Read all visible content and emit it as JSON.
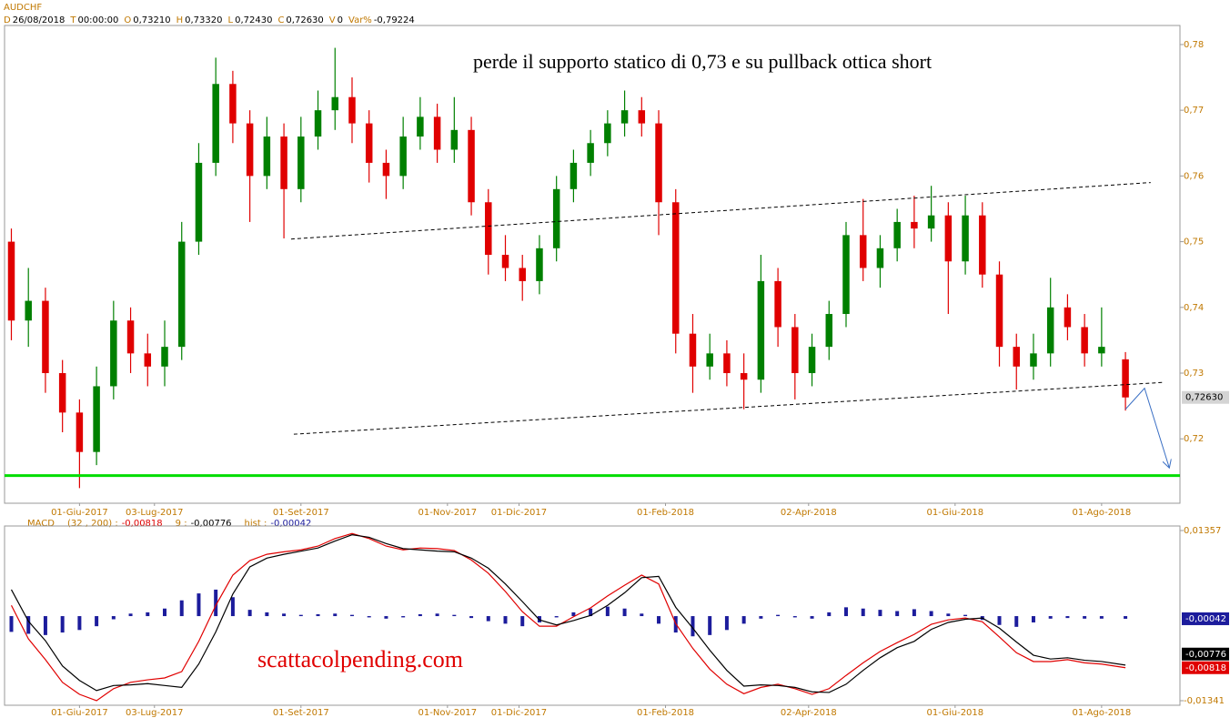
{
  "header": {
    "symbol": "AUDCHF",
    "info": [
      {
        "key": "D",
        "value": "26/08/2018"
      },
      {
        "key": "T",
        "value": "00:00:00"
      },
      {
        "key": "O",
        "value": "0,73210"
      },
      {
        "key": "H",
        "value": "0,73320"
      },
      {
        "key": "L",
        "value": "0,72430"
      },
      {
        "key": "C",
        "value": "0,72630"
      },
      {
        "key": "V",
        "value": "0"
      },
      {
        "key": "Var%",
        "value": "-0,79224"
      }
    ]
  },
  "chart_data": [
    {
      "type": "candlestick",
      "up_color": "#008000",
      "down_color": "#e00000",
      "xlim": [
        0,
        345
      ],
      "ylim": [
        0.7102,
        0.7829
      ],
      "xticks": [
        {
          "value": 22,
          "label": "01-Giu-2017"
        },
        {
          "value": 44,
          "label": "03-Lug-2017"
        },
        {
          "value": 87,
          "label": "01-Set-2017"
        },
        {
          "value": 130,
          "label": "01-Nov-2017"
        },
        {
          "value": 151,
          "label": "01-Dic-2017"
        },
        {
          "value": 194,
          "label": "01-Feb-2018"
        },
        {
          "value": 236,
          "label": "02-Apr-2018"
        },
        {
          "value": 279,
          "label": "01-Giu-2018"
        },
        {
          "value": 322,
          "label": "01-Ago-2018"
        }
      ],
      "yticks": [
        {
          "value": 0.78,
          "label": "0,78"
        },
        {
          "value": 0.77,
          "label": "0,77"
        },
        {
          "value": 0.76,
          "label": "0,76"
        },
        {
          "value": 0.75,
          "label": "0,75"
        },
        {
          "value": 0.74,
          "label": "0,74"
        },
        {
          "value": 0.73,
          "label": "0,73"
        },
        {
          "value": 0.72,
          "label": "0,72"
        }
      ],
      "x": [
        2,
        7,
        12,
        17,
        22,
        27,
        32,
        37,
        42,
        47,
        52,
        57,
        62,
        67,
        72,
        77,
        82,
        87,
        92,
        97,
        102,
        107,
        112,
        117,
        122,
        127,
        132,
        137,
        142,
        147,
        152,
        157,
        162,
        167,
        172,
        177,
        182,
        187,
        192,
        197,
        202,
        207,
        212,
        217,
        222,
        227,
        232,
        237,
        242,
        247,
        252,
        257,
        262,
        267,
        272,
        277,
        282,
        287,
        292,
        297,
        302,
        307,
        312,
        317,
        322,
        329
      ],
      "open": [
        0.75,
        0.738,
        0.741,
        0.73,
        0.724,
        0.718,
        0.728,
        0.738,
        0.733,
        0.731,
        0.734,
        0.75,
        0.762,
        0.774,
        0.768,
        0.76,
        0.766,
        0.758,
        0.766,
        0.77,
        0.772,
        0.768,
        0.762,
        0.76,
        0.766,
        0.769,
        0.764,
        0.767,
        0.756,
        0.748,
        0.746,
        0.744,
        0.749,
        0.758,
        0.762,
        0.765,
        0.768,
        0.77,
        0.768,
        0.756,
        0.736,
        0.731,
        0.733,
        0.73,
        0.729,
        0.744,
        0.737,
        0.73,
        0.734,
        0.739,
        0.751,
        0.746,
        0.749,
        0.753,
        0.752,
        0.754,
        0.747,
        0.754,
        0.745,
        0.734,
        0.731,
        0.733,
        0.74,
        0.737,
        0.733,
        0.7321
      ],
      "high": [
        0.752,
        0.746,
        0.743,
        0.732,
        0.726,
        0.731,
        0.741,
        0.74,
        0.736,
        0.738,
        0.753,
        0.765,
        0.778,
        0.776,
        0.77,
        0.769,
        0.768,
        0.769,
        0.773,
        0.7795,
        0.775,
        0.77,
        0.764,
        0.769,
        0.772,
        0.771,
        0.772,
        0.769,
        0.758,
        0.751,
        0.748,
        0.751,
        0.76,
        0.764,
        0.767,
        0.77,
        0.773,
        0.772,
        0.77,
        0.758,
        0.739,
        0.736,
        0.735,
        0.733,
        0.748,
        0.746,
        0.739,
        0.736,
        0.741,
        0.753,
        0.7565,
        0.751,
        0.755,
        0.757,
        0.7585,
        0.756,
        0.757,
        0.756,
        0.747,
        0.736,
        0.736,
        0.7445,
        0.742,
        0.739,
        0.74,
        0.7332
      ],
      "low": [
        0.735,
        0.734,
        0.727,
        0.721,
        0.7125,
        0.716,
        0.726,
        0.73,
        0.728,
        0.728,
        0.732,
        0.748,
        0.76,
        0.765,
        0.753,
        0.758,
        0.7505,
        0.756,
        0.764,
        0.767,
        0.765,
        0.759,
        0.7565,
        0.758,
        0.764,
        0.762,
        0.762,
        0.754,
        0.745,
        0.744,
        0.741,
        0.742,
        0.747,
        0.756,
        0.76,
        0.763,
        0.766,
        0.766,
        0.751,
        0.733,
        0.727,
        0.729,
        0.728,
        0.7245,
        0.727,
        0.734,
        0.726,
        0.728,
        0.732,
        0.737,
        0.744,
        0.743,
        0.747,
        0.749,
        0.75,
        0.739,
        0.745,
        0.743,
        0.731,
        0.7275,
        0.729,
        0.731,
        0.735,
        0.731,
        0.731,
        0.7243
      ],
      "close": [
        0.738,
        0.741,
        0.73,
        0.724,
        0.718,
        0.728,
        0.738,
        0.733,
        0.731,
        0.734,
        0.75,
        0.762,
        0.774,
        0.768,
        0.76,
        0.766,
        0.758,
        0.766,
        0.77,
        0.772,
        0.768,
        0.762,
        0.76,
        0.766,
        0.769,
        0.764,
        0.767,
        0.756,
        0.748,
        0.746,
        0.744,
        0.749,
        0.758,
        0.762,
        0.765,
        0.768,
        0.77,
        0.768,
        0.756,
        0.736,
        0.731,
        0.733,
        0.73,
        0.729,
        0.744,
        0.737,
        0.73,
        0.734,
        0.739,
        0.751,
        0.746,
        0.749,
        0.753,
        0.752,
        0.754,
        0.747,
        0.754,
        0.745,
        0.734,
        0.731,
        0.733,
        0.74,
        0.737,
        0.733,
        0.734,
        0.7263
      ],
      "close_label": "0,72630",
      "drawings": [
        {
          "kind": "dashed",
          "color": "#000000",
          "x": [
            84.1,
            336.4
          ],
          "y": [
            0.7504,
            0.759
          ]
        },
        {
          "kind": "dashed",
          "color": "#000000",
          "x": [
            84.9,
            340.5
          ],
          "y": [
            0.7207,
            0.7286
          ]
        },
        {
          "kind": "solid",
          "color": "#00dd00",
          "x": [
            0,
            345
          ],
          "y": [
            0.7144,
            0.7144
          ]
        },
        {
          "kind": "arrow",
          "color": "#3a6fc4",
          "x": [
            329,
            334.6,
            341.8
          ],
          "y": [
            0.7245,
            0.7277,
            0.7157
          ]
        }
      ],
      "annotations": [
        {
          "text": "perde il supporto statico di 0,73 e su pullback ottica short",
          "color": "#000000"
        }
      ]
    },
    {
      "type": "macd",
      "title": "MACD",
      "xlim": [
        0,
        345
      ],
      "ylim": [
        -0.01413,
        0.01429
      ],
      "yticks": [
        {
          "value": 0.01357,
          "label": "0,01357"
        },
        {
          "value": -0.01341,
          "label": "-0,01341"
        }
      ],
      "x": [
        2,
        7,
        12,
        17,
        22,
        27,
        32,
        37,
        42,
        47,
        52,
        57,
        62,
        67,
        72,
        77,
        82,
        87,
        92,
        97,
        102,
        107,
        112,
        117,
        122,
        127,
        132,
        137,
        142,
        147,
        152,
        157,
        162,
        167,
        172,
        177,
        182,
        187,
        192,
        197,
        202,
        207,
        212,
        217,
        222,
        227,
        232,
        237,
        242,
        247,
        252,
        257,
        262,
        267,
        272,
        277,
        282,
        287,
        292,
        297,
        302,
        307,
        312,
        317,
        322,
        329
      ],
      "series": [
        {
          "name": "(32 , 200) :",
          "kind": "line",
          "color": "#e00000",
          "value_label": "-0,00818",
          "values": [
            0.0017,
            -0.0036,
            -0.0069,
            -0.0105,
            -0.0124,
            -0.0134,
            -0.0115,
            -0.0105,
            -0.0101,
            -0.0098,
            -0.0088,
            -0.004,
            0.0017,
            0.0065,
            0.0088,
            0.0098,
            0.0102,
            0.0105,
            0.0111,
            0.0123,
            0.0131,
            0.0123,
            0.0111,
            0.0105,
            0.0108,
            0.0107,
            0.0104,
            0.0089,
            0.0068,
            0.0039,
            0.0007,
            -0.0016,
            -0.0016,
            -0.0001,
            0.0013,
            0.0032,
            0.0049,
            0.0065,
            0.0051,
            -0.0012,
            -0.0051,
            -0.0084,
            -0.0108,
            -0.0123,
            -0.0113,
            -0.0108,
            -0.0115,
            -0.0124,
            -0.0115,
            -0.0094,
            -0.0074,
            -0.0056,
            -0.0042,
            -0.0029,
            -0.0013,
            -0.0006,
            -0.0003,
            -0.0009,
            -0.0033,
            -0.0058,
            -0.0072,
            -0.0072,
            -0.0069,
            -0.0074,
            -0.0076,
            -0.00818
          ]
        },
        {
          "name": "9 :",
          "kind": "line",
          "color": "#000000",
          "value_label": "-0,00776",
          "values": [
            0.0042,
            -0.0008,
            -0.0039,
            -0.0079,
            -0.0102,
            -0.0118,
            -0.011,
            -0.0109,
            -0.0107,
            -0.011,
            -0.0113,
            -0.0076,
            -0.0025,
            0.0035,
            0.0078,
            0.0092,
            0.0098,
            0.0103,
            0.0108,
            0.0119,
            0.0129,
            0.0125,
            0.0115,
            0.0107,
            0.0105,
            0.0103,
            0.0102,
            0.0092,
            0.0076,
            0.0051,
            0.0023,
            -0.0006,
            -0.0014,
            -0.0007,
            0.0001,
            0.0017,
            0.0037,
            0.0061,
            0.0063,
            0.0014,
            -0.0019,
            -0.0054,
            -0.0086,
            -0.0111,
            -0.0109,
            -0.011,
            -0.0113,
            -0.012,
            -0.0121,
            -0.0108,
            -0.0086,
            -0.0066,
            -0.005,
            -0.004,
            -0.0021,
            -0.001,
            -0.0005,
            -0.0003,
            -0.0019,
            -0.0041,
            -0.0062,
            -0.0068,
            -0.0066,
            -0.007,
            -0.0072,
            -0.00776
          ]
        },
        {
          "name": "hist :",
          "kind": "hist",
          "color": "#1c1c9c",
          "value_label": "-0,00042",
          "values": [
            -0.0025,
            -0.0028,
            -0.003,
            -0.0026,
            -0.0022,
            -0.0016,
            -0.0005,
            0.0004,
            0.0006,
            0.0012,
            0.0025,
            0.0036,
            0.0042,
            0.003,
            0.001,
            0.0006,
            0.0004,
            0.0002,
            0.0003,
            0.0004,
            0.0002,
            -0.0002,
            -0.0004,
            -0.0002,
            0.0003,
            0.0004,
            0.0002,
            -0.0003,
            -0.0008,
            -0.0012,
            -0.0016,
            -0.001,
            -0.0002,
            0.0006,
            0.0012,
            0.0015,
            0.0012,
            0.0004,
            -0.0012,
            -0.0026,
            -0.0032,
            -0.003,
            -0.0022,
            -0.0012,
            -0.0004,
            0.0002,
            -0.0002,
            -0.0004,
            0.0006,
            0.0014,
            0.0012,
            0.001,
            0.0008,
            0.0011,
            0.0008,
            0.0004,
            0.0002,
            -0.0006,
            -0.0014,
            -0.0017,
            -0.001,
            -0.0004,
            -0.0003,
            -0.0004,
            -0.0004,
            -0.00042
          ]
        }
      ],
      "annotations": [
        {
          "text": "scattacolpending.com",
          "color": "#e00000"
        }
      ]
    }
  ]
}
